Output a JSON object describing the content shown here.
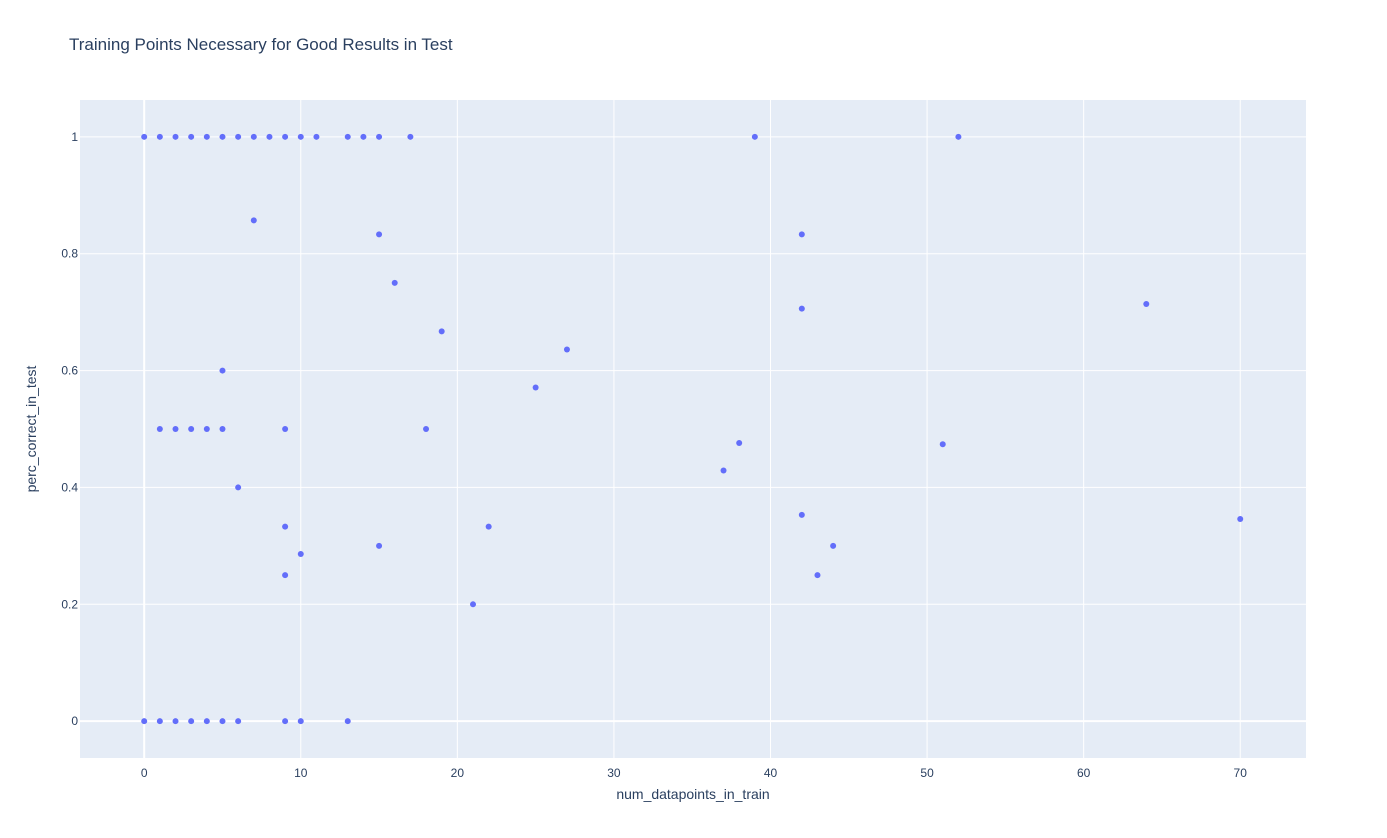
{
  "chart_data": {
    "type": "scatter",
    "title": "Training Points Necessary for Good Results in Test",
    "xlabel": "num_datapoints_in_train",
    "ylabel": "perc_correct_in_test",
    "xlim": [
      -4.1,
      74.2
    ],
    "ylim": [
      -0.063,
      1.063
    ],
    "x_ticks": [
      0,
      10,
      20,
      30,
      40,
      50,
      60,
      70
    ],
    "y_ticks": [
      0,
      0.2,
      0.4,
      0.6,
      0.8,
      1
    ],
    "y_tick_labels": [
      "0",
      "0.2",
      "0.4",
      "0.6",
      "0.8",
      "1"
    ],
    "grid": true,
    "colors": {
      "plot_bg": "#E5ECF6",
      "grid": "#ffffff",
      "marker": "#636EFA",
      "text": "#2a3f5f"
    },
    "series": [
      {
        "x": [
          0,
          1,
          2,
          3,
          4,
          5,
          6,
          7,
          8,
          9,
          10,
          11,
          13,
          14,
          15,
          17,
          39,
          52,
          7,
          15,
          42,
          16,
          42,
          64,
          19,
          27,
          5,
          25,
          1,
          2,
          3,
          4,
          5,
          9,
          18,
          38,
          37,
          51,
          6,
          9,
          22,
          42,
          15,
          44,
          10,
          9,
          43,
          21,
          70,
          0,
          1,
          2,
          3,
          4,
          5,
          6,
          9,
          10,
          13
        ],
        "y": [
          1,
          1,
          1,
          1,
          1,
          1,
          1,
          1,
          1,
          1,
          1,
          1,
          1,
          1,
          1,
          1,
          1,
          1,
          0.857,
          0.833,
          0.833,
          0.75,
          0.706,
          0.714,
          0.667,
          0.636,
          0.6,
          0.571,
          0.5,
          0.5,
          0.5,
          0.5,
          0.5,
          0.5,
          0.5,
          0.476,
          0.429,
          0.474,
          0.4,
          0.333,
          0.333,
          0.353,
          0.3,
          0.3,
          0.286,
          0.25,
          0.25,
          0.2,
          0.346,
          0,
          0,
          0,
          0,
          0,
          0,
          0,
          0,
          0,
          0
        ]
      }
    ]
  }
}
